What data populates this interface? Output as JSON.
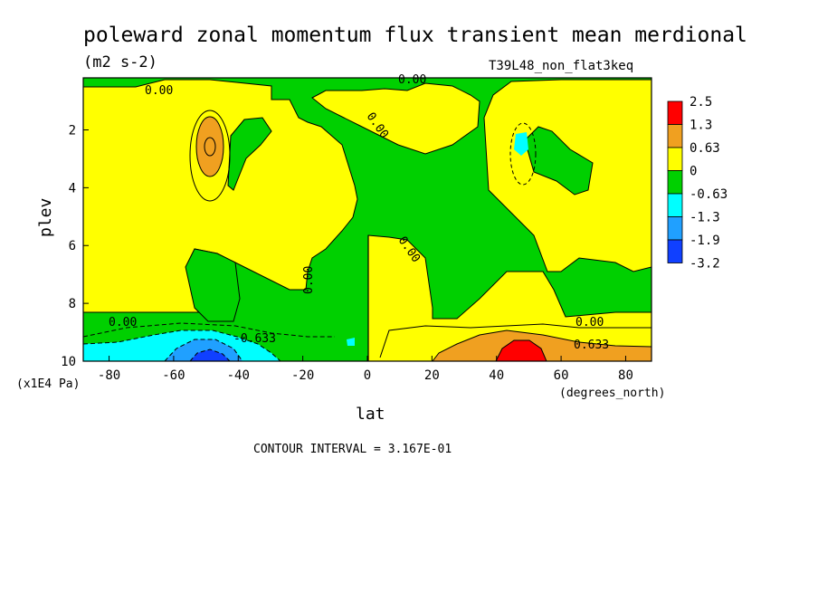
{
  "chart_data": {
    "type": "heatmap",
    "title": "poleward zonal momentum flux transient mean merdional",
    "units": "(m2 s-2)",
    "run_label": "T39L48_non_flat3keq",
    "xlabel": "lat",
    "x_units": "(degrees_north)",
    "ylabel": "plev",
    "y_units": "(x1E4 Pa)",
    "xlim": [
      -88,
      88
    ],
    "ylim": [
      0.2,
      10
    ],
    "y_inverted": true,
    "x_ticks": [
      "-80",
      "-60",
      "-40",
      "-20",
      "0",
      "20",
      "40",
      "60",
      "80"
    ],
    "y_ticks": [
      "2",
      "4",
      "6",
      "8",
      "10"
    ],
    "footer": "CONTOUR INTERVAL = 3.167E-01",
    "contour_labels": [
      "0.00",
      "0.00",
      "0.00",
      "0.00",
      "0.00",
      "0.00",
      "0.00",
      "-0.633",
      "0.633"
    ],
    "legend": {
      "levels": [
        "2.5",
        "1.3",
        "0.63",
        "0",
        "-0.63",
        "-1.3",
        "-1.9",
        "-3.2"
      ],
      "colors": [
        "#ff0000",
        "#f0a020",
        "#ffff00",
        "#00d000",
        "#00ffff",
        "#20a0ff",
        "#1040ff"
      ]
    },
    "colors": {
      "positive_low": "#ffff00",
      "negative_low": "#00d000",
      "positive_mid": "#f0a020",
      "positive_high": "#ff0000",
      "negative_mid": "#00ffff",
      "negative_high": "#20a0ff",
      "negative_max": "#1040ff"
    }
  }
}
